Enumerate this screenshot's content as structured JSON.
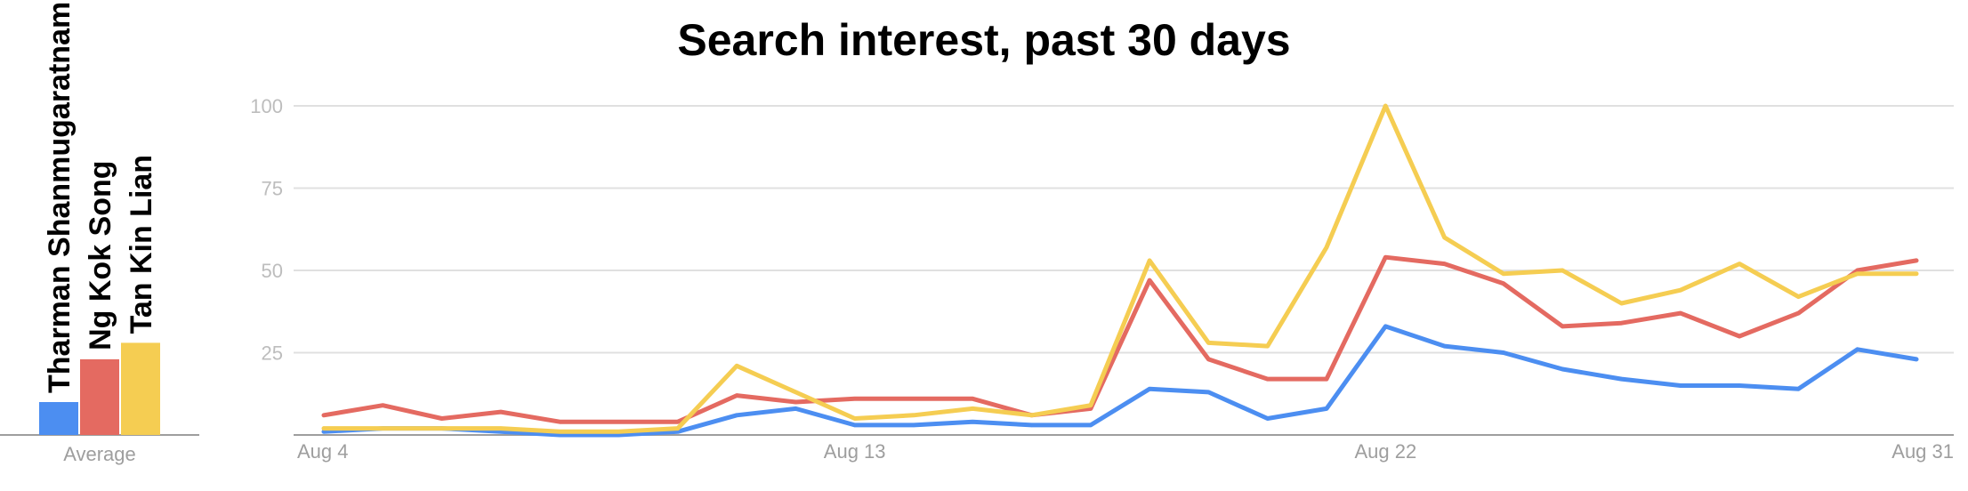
{
  "chart_data": {
    "type": "line",
    "title": "Search interest, past 30 days",
    "x_tick_labels": [
      "Aug 4",
      "Aug 13",
      "Aug 22",
      "Aug 31"
    ],
    "x_tick_index": [
      0,
      9,
      18,
      27
    ],
    "y_ticks": [
      25,
      50,
      75,
      100
    ],
    "ylim": [
      0,
      100
    ],
    "grid": true,
    "series": [
      {
        "name": "Tharman Shanmugaratnam",
        "color": "#4c8ef1",
        "values": [
          1,
          2,
          2,
          1,
          0,
          0,
          1,
          6,
          8,
          3,
          3,
          4,
          3,
          3,
          14,
          13,
          5,
          8,
          33,
          27,
          25,
          20,
          17,
          15,
          15,
          14,
          26,
          23
        ]
      },
      {
        "name": "Ng Kok Song",
        "color": "#e46a61",
        "values": [
          6,
          9,
          5,
          7,
          4,
          4,
          4,
          12,
          10,
          11,
          11,
          11,
          6,
          8,
          47,
          23,
          17,
          17,
          54,
          52,
          46,
          33,
          34,
          37,
          30,
          37,
          50,
          53
        ]
      },
      {
        "name": "Tan Kin Lian",
        "color": "#f5cd52",
        "values": [
          2,
          2,
          2,
          2,
          1,
          1,
          2,
          21,
          13,
          5,
          6,
          8,
          6,
          9,
          53,
          28,
          27,
          57,
          100,
          60,
          49,
          50,
          40,
          44,
          52,
          42,
          49,
          49
        ]
      }
    ],
    "average": {
      "label": "Average",
      "values": [
        10,
        23,
        28
      ]
    }
  }
}
